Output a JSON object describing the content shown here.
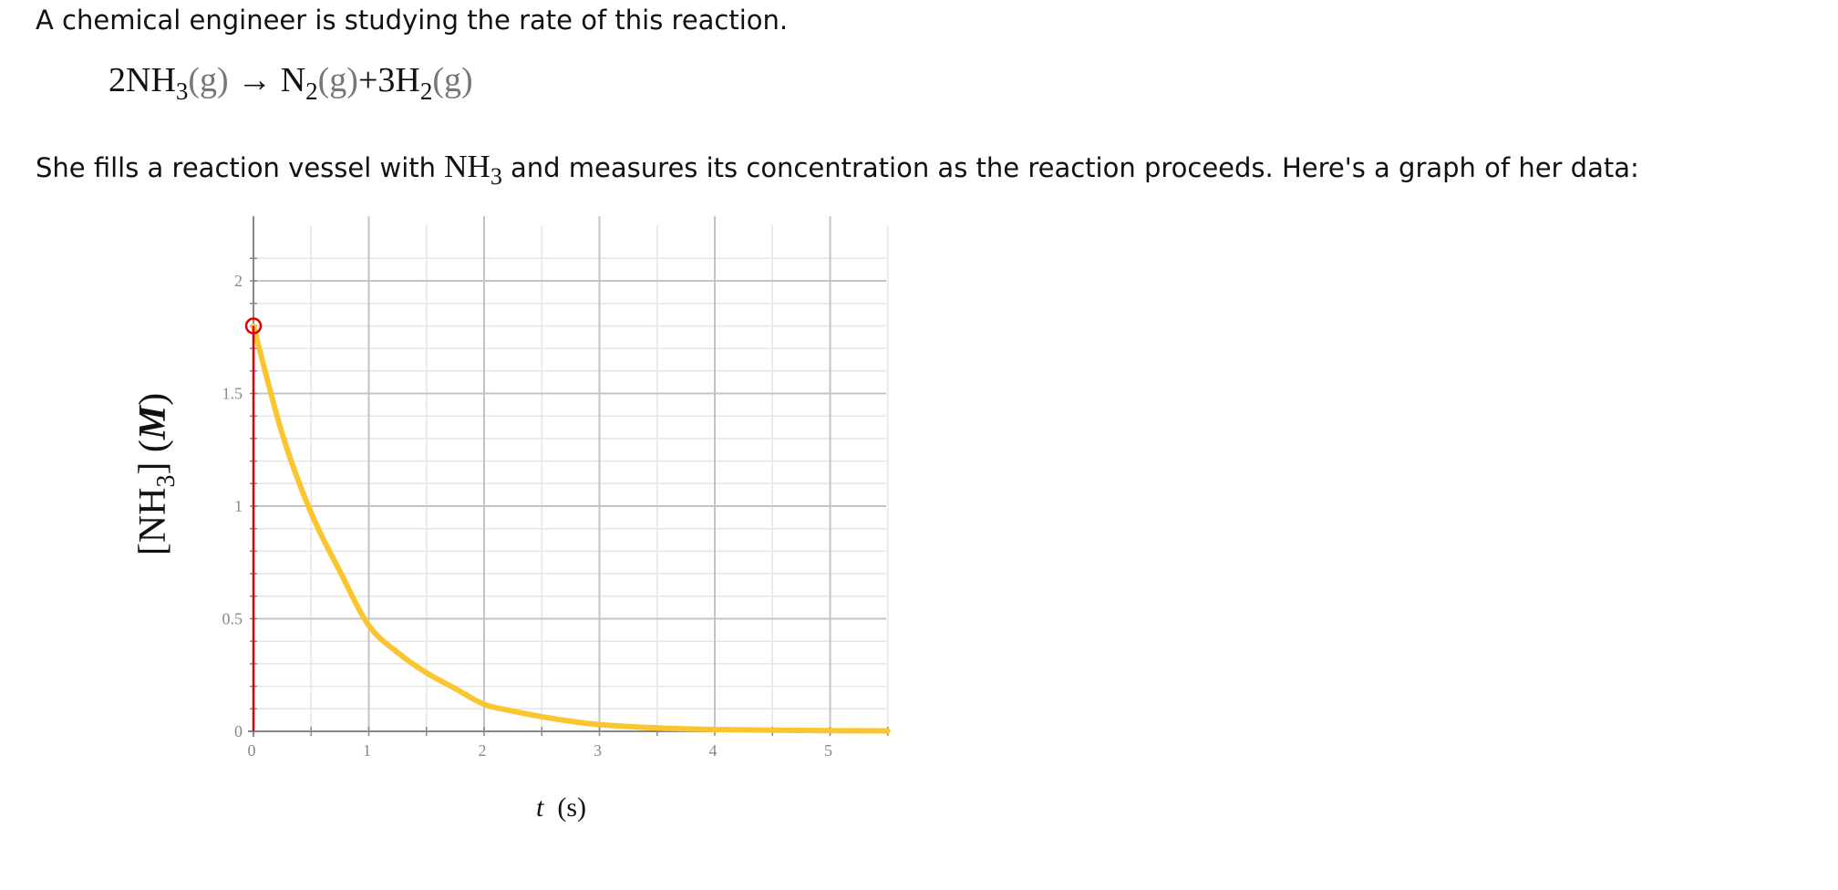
{
  "intro": "A chemical engineer is studying the rate of this reaction.",
  "equation": {
    "coef1": "2",
    "reactant": "NH",
    "reactant_sub": "3",
    "reactant_state": "(g)",
    "arrow": "→",
    "product1": "N",
    "product1_sub": "2",
    "product1_state": "(g)",
    "plus": "+",
    "coef2": "3",
    "product2": "H",
    "product2_sub": "2",
    "product2_state": "(g)"
  },
  "sentence": {
    "before": "She fills a reaction vessel with ",
    "species": "NH",
    "species_sub": "3",
    "after": " and measures its concentration as the reaction proceeds. Here's a graph of her data:"
  },
  "colors": {
    "curve": "#fbc52f",
    "marker": "#e00000",
    "grid_major": "#c4c4c4",
    "grid_minor": "#e6e6e6",
    "tick_text": "#888888"
  },
  "chart_data": {
    "type": "line",
    "title": "",
    "xlabel_var": "t",
    "xlabel_unit": "(s)",
    "ylabel_bracket_open": "[",
    "ylabel_species": "NH",
    "ylabel_sub": "3",
    "ylabel_bracket_close": "]",
    "ylabel_unit_var": "M",
    "xlim": [
      0,
      5.5
    ],
    "ylim": [
      0,
      2.1
    ],
    "xticks": [
      0,
      1,
      2,
      3,
      4,
      5
    ],
    "yticks": [
      0,
      0.5,
      1,
      1.5,
      2
    ],
    "xtick_labels": [
      "0",
      "1",
      "2",
      "3",
      "4",
      "5"
    ],
    "ytick_labels": [
      "0",
      "0.5",
      "1",
      "1.5",
      "2"
    ],
    "x_minor_step": 0.5,
    "y_minor_step": 0.1,
    "grid": true,
    "series": [
      {
        "x": [
          0,
          0.25,
          0.5,
          0.75,
          1,
          1.25,
          1.5,
          1.75,
          2,
          2.25,
          2.5,
          2.75,
          3,
          3.5,
          4,
          4.5,
          5,
          5.5
        ],
        "y": [
          1.8,
          1.32,
          0.97,
          0.71,
          0.47,
          0.35,
          0.26,
          0.19,
          0.12,
          0.09,
          0.065,
          0.045,
          0.03,
          0.015,
          0.008,
          0.005,
          0.003,
          0.002
        ]
      }
    ],
    "marker_point": {
      "x": 0,
      "y": 1.8
    }
  }
}
